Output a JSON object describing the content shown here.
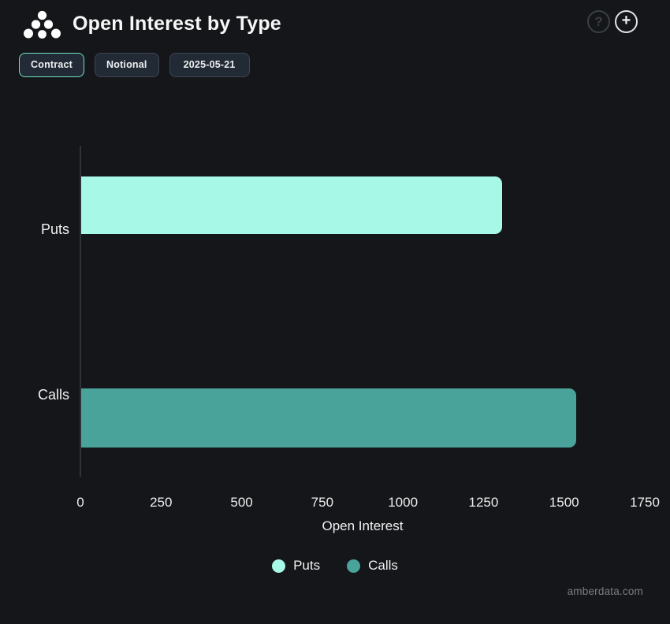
{
  "header": {
    "title": "Open Interest by Type",
    "help_label": "?",
    "add_label": "+"
  },
  "toolbar": {
    "buttons": [
      {
        "label": "Contract",
        "active": true
      },
      {
        "label": "Notional",
        "active": false
      },
      {
        "label": "2025-05-21",
        "active": false
      }
    ]
  },
  "chart_data": {
    "type": "bar",
    "orientation": "horizontal",
    "title": "Open Interest by Type",
    "categories": [
      "Puts",
      "Calls"
    ],
    "values": [
      1305,
      1535
    ],
    "series_colors": {
      "Puts": "#a8f8e7",
      "Calls": "#4aa39a"
    },
    "xlabel": "Open Interest",
    "x_ticks": [
      0,
      250,
      500,
      750,
      1000,
      1250,
      1500,
      1750
    ],
    "xlim": [
      0,
      1750
    ],
    "grid": false,
    "legend": [
      "Puts",
      "Calls"
    ],
    "legend_position": "bottom"
  },
  "footer": {
    "watermark": "amberdata.com"
  }
}
